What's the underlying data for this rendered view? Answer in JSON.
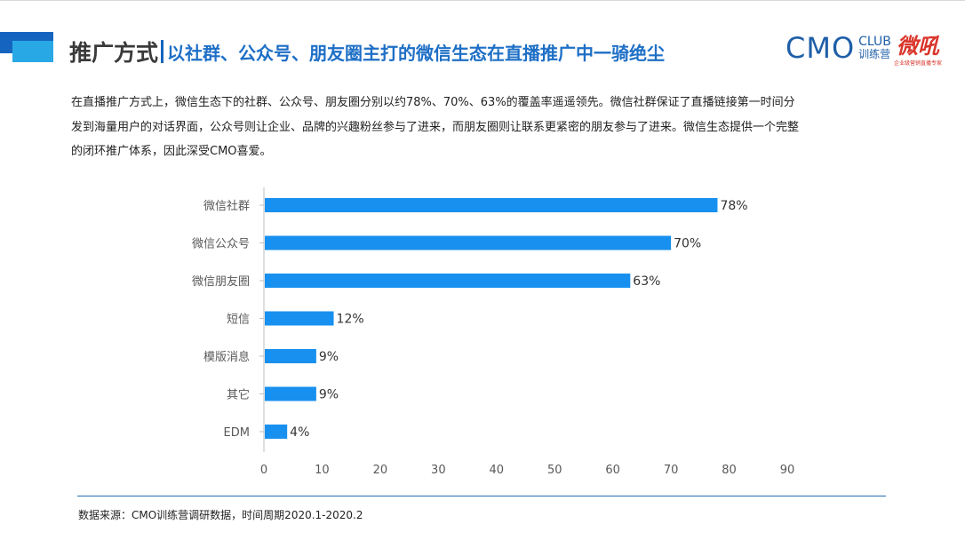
{
  "header": {
    "title": "推广方式",
    "subtitle": "以社群、公众号、朋友圈主打的微信生态在直播推广中一骑绝尘"
  },
  "logos": {
    "cmo_text": "CMO",
    "cmo_club": "CLUB",
    "cmo_camp": "训练营",
    "wei_text": "微吼",
    "wei_sub": "企业级营销直播专家"
  },
  "paragraph": "在直播推广方式上，微信生态下的社群、公众号、朋友圈分别以约78%、70%、63%的覆盖率遥遥领先。微信社群保证了直播链接第一时间分发到海量用户的对话界面，公众号则让企业、品牌的兴趣粉丝参与了进来，而朋友圈则让联系更紧密的朋友参与了进来。微信生态提供一个完整的闭环推广体系，因此深受CMO喜爱。",
  "footer": "数据来源：CMO训练营调研数据，时间周期2020.1-2020.2",
  "colors": {
    "bar": "#1890ef",
    "accent": "#1565c0"
  },
  "chart_data": {
    "type": "bar",
    "orientation": "horizontal",
    "categories": [
      "微信社群",
      "微信公众号",
      "微信朋友圈",
      "短信",
      "模版消息",
      "其它",
      "EDM"
    ],
    "values": [
      78,
      70,
      63,
      12,
      9,
      9,
      4
    ],
    "value_labels": [
      "78%",
      "70%",
      "63%",
      "12%",
      "9%",
      "9%",
      "4%"
    ],
    "xlim": [
      0,
      90
    ],
    "xticks": [
      "0",
      "10",
      "20",
      "30",
      "40",
      "50",
      "60",
      "70",
      "80",
      "90"
    ],
    "grid": false,
    "legend": "none"
  }
}
